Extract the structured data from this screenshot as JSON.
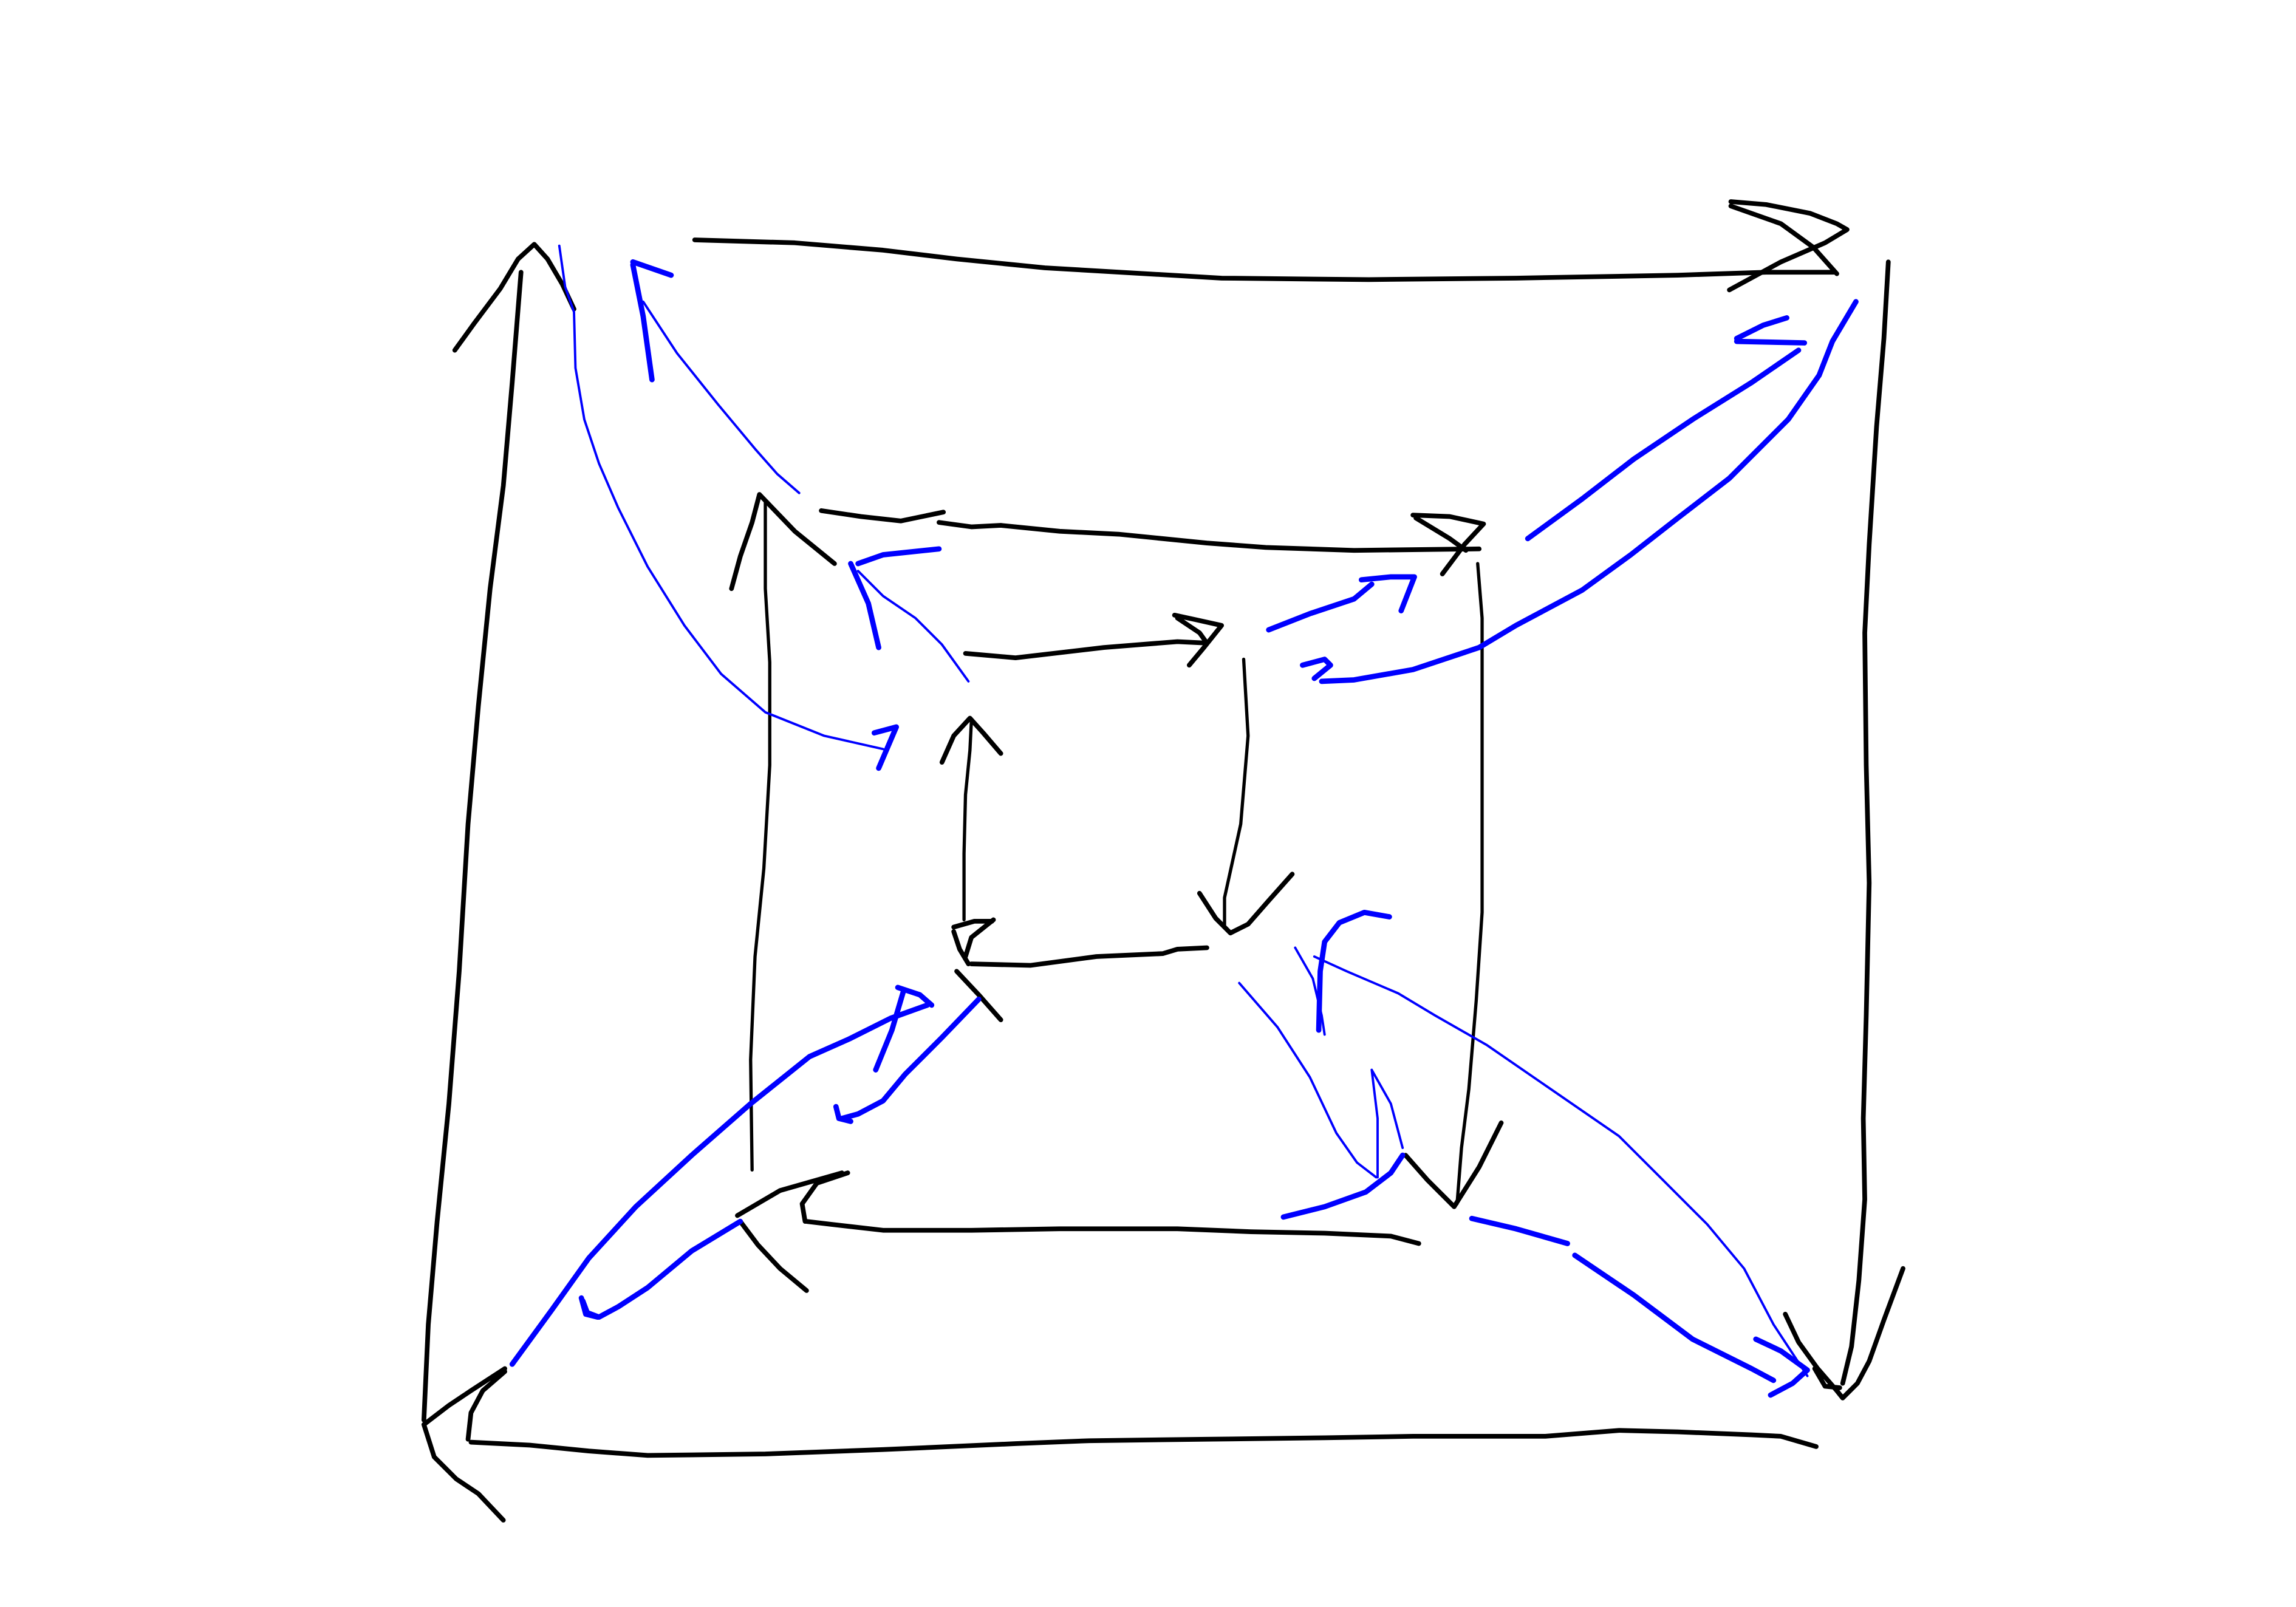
{
  "colors": {
    "background": "#ffffff",
    "black_ink": "#000000",
    "blue_ink": "#0000ff"
  }
}
